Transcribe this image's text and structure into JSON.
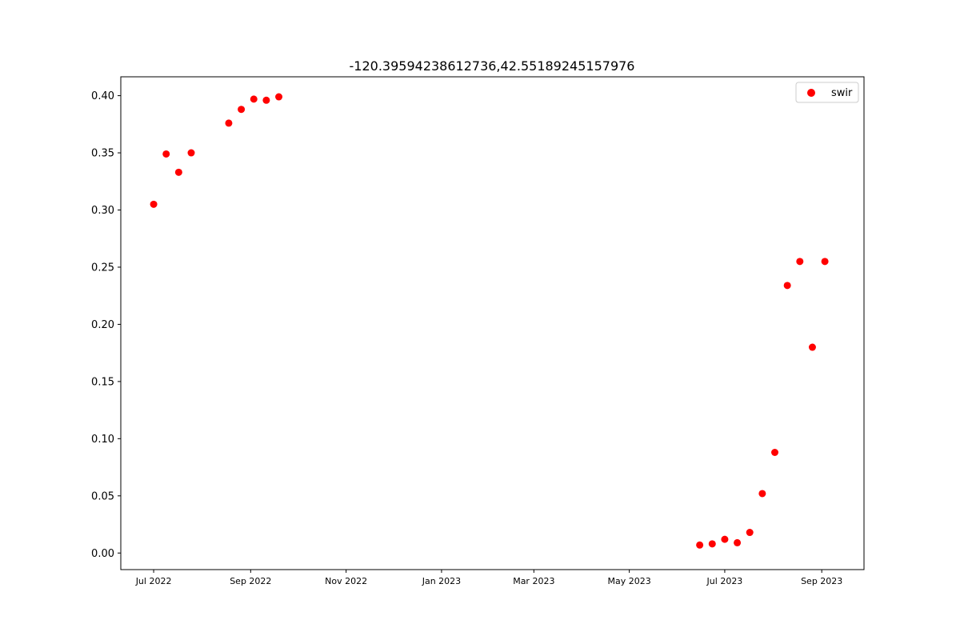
{
  "chart_data": {
    "type": "scatter",
    "title": "-120.39594238612736,42.55189245157976",
    "xlabel": "",
    "ylabel": "",
    "grid": false,
    "legend_position": "top-right",
    "x_axis_type": "date",
    "xlim": [
      "2022-06-10",
      "2023-09-28"
    ],
    "ylim": [
      -0.0145,
      0.4165
    ],
    "xticks": [
      {
        "date": "2022-07-01",
        "label": "Jul 2022"
      },
      {
        "date": "2022-09-01",
        "label": "Sep 2022"
      },
      {
        "date": "2022-11-01",
        "label": "Nov 2022"
      },
      {
        "date": "2023-01-01",
        "label": "Jan 2023"
      },
      {
        "date": "2023-03-01",
        "label": "Mar 2023"
      },
      {
        "date": "2023-05-01",
        "label": "May 2023"
      },
      {
        "date": "2023-07-01",
        "label": "Jul 2023"
      },
      {
        "date": "2023-09-01",
        "label": "Sep 2023"
      }
    ],
    "yticks": [
      {
        "value": 0.0,
        "label": "0.00"
      },
      {
        "value": 0.05,
        "label": "0.05"
      },
      {
        "value": 0.1,
        "label": "0.10"
      },
      {
        "value": 0.15,
        "label": "0.15"
      },
      {
        "value": 0.2,
        "label": "0.20"
      },
      {
        "value": 0.25,
        "label": "0.25"
      },
      {
        "value": 0.3,
        "label": "0.30"
      },
      {
        "value": 0.35,
        "label": "0.35"
      },
      {
        "value": 0.4,
        "label": "0.40"
      }
    ],
    "series": [
      {
        "name": "swir",
        "color": "#ff0000",
        "points": [
          {
            "x": "2022-07-01",
            "y": 0.305
          },
          {
            "x": "2022-07-09",
            "y": 0.349
          },
          {
            "x": "2022-07-17",
            "y": 0.333
          },
          {
            "x": "2022-07-25",
            "y": 0.35
          },
          {
            "x": "2022-08-18",
            "y": 0.376
          },
          {
            "x": "2022-08-26",
            "y": 0.388
          },
          {
            "x": "2022-09-03",
            "y": 0.397
          },
          {
            "x": "2022-09-11",
            "y": 0.396
          },
          {
            "x": "2022-09-19",
            "y": 0.399
          },
          {
            "x": "2023-06-15",
            "y": 0.007
          },
          {
            "x": "2023-06-23",
            "y": 0.008
          },
          {
            "x": "2023-07-01",
            "y": 0.012
          },
          {
            "x": "2023-07-09",
            "y": 0.009
          },
          {
            "x": "2023-07-17",
            "y": 0.018
          },
          {
            "x": "2023-07-25",
            "y": 0.052
          },
          {
            "x": "2023-08-02",
            "y": 0.088
          },
          {
            "x": "2023-08-10",
            "y": 0.234
          },
          {
            "x": "2023-08-18",
            "y": 0.255
          },
          {
            "x": "2023-08-26",
            "y": 0.18
          },
          {
            "x": "2023-09-03",
            "y": 0.255
          }
        ]
      }
    ]
  }
}
